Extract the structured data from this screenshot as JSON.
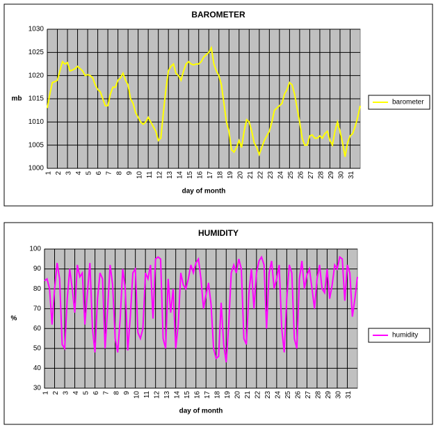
{
  "chart_data": [
    {
      "type": "line",
      "title": "BAROMETER",
      "x_label": "day of month",
      "y_label": "mb",
      "xlim": [
        1,
        32
      ],
      "xticks": [
        1,
        2,
        3,
        4,
        5,
        6,
        7,
        8,
        9,
        10,
        11,
        12,
        13,
        14,
        15,
        16,
        17,
        18,
        19,
        20,
        21,
        22,
        23,
        24,
        25,
        26,
        27,
        28,
        29,
        30,
        31
      ],
      "ylim": [
        1000,
        1030
      ],
      "yticks": [
        1000,
        1005,
        1010,
        1015,
        1020,
        1025,
        1030
      ],
      "grid": true,
      "legend": "right",
      "x": [
        1,
        1.25,
        1.5,
        1.75,
        2,
        2.25,
        2.5,
        2.75,
        3,
        3.25,
        3.5,
        3.75,
        4,
        4.25,
        4.5,
        4.75,
        5,
        5.25,
        5.5,
        5.75,
        6,
        6.25,
        6.5,
        6.75,
        7,
        7.25,
        7.5,
        7.75,
        8,
        8.25,
        8.5,
        8.75,
        9,
        9.25,
        9.5,
        9.75,
        10,
        10.25,
        10.5,
        10.75,
        11,
        11.25,
        11.5,
        11.75,
        12,
        12.25,
        12.5,
        12.75,
        13,
        13.25,
        13.5,
        13.75,
        14,
        14.25,
        14.5,
        14.75,
        15,
        15.25,
        15.5,
        15.75,
        16,
        16.25,
        16.5,
        16.75,
        17,
        17.25,
        17.5,
        17.75,
        18,
        18.25,
        18.5,
        18.75,
        19,
        19.25,
        19.5,
        19.75,
        20,
        20.25,
        20.5,
        20.75,
        21,
        21.25,
        21.5,
        21.75,
        22,
        22.25,
        22.5,
        22.75,
        23,
        23.25,
        23.5,
        23.75,
        24,
        24.25,
        24.5,
        24.75,
        25,
        25.25,
        25.5,
        25.75,
        26,
        26.25,
        26.5,
        26.75,
        27,
        27.25,
        27.5,
        27.75,
        28,
        28.25,
        28.5,
        28.75,
        29,
        29.25,
        29.5,
        29.75,
        30,
        30.25,
        30.5,
        30.75,
        31,
        31.25,
        31.5,
        31.75,
        32
      ],
      "series": [
        {
          "name": "barometer",
          "color": "#ffff00",
          "values": [
            1013,
            1016,
            1018.5,
            1018.7,
            1019,
            1021,
            1023,
            1022.5,
            1022.8,
            1021,
            1021.2,
            1021.5,
            1022,
            1021.5,
            1021,
            1020,
            1020.2,
            1020,
            1019.5,
            1018,
            1017,
            1016.5,
            1015,
            1013.5,
            1013.5,
            1016,
            1017.5,
            1017.5,
            1019,
            1019.5,
            1020.5,
            1019,
            1018,
            1015,
            1014,
            1012,
            1011,
            1010,
            1009.5,
            1010,
            1011,
            1010,
            1009,
            1008,
            1006,
            1006.5,
            1012,
            1017,
            1021,
            1022,
            1022.5,
            1020.5,
            1020,
            1019,
            1021,
            1022.5,
            1023,
            1022.5,
            1022.3,
            1022.5,
            1022.5,
            1023,
            1024,
            1024.5,
            1025,
            1026,
            1022.5,
            1021,
            1020,
            1018,
            1014,
            1010,
            1008,
            1004,
            1003.5,
            1004.5,
            1006,
            1004.5,
            1008,
            1010.5,
            1010,
            1008,
            1005.5,
            1004.5,
            1003,
            1004.5,
            1006,
            1007,
            1008,
            1010,
            1012.5,
            1013,
            1013.5,
            1014,
            1016,
            1017,
            1018.5,
            1018,
            1016,
            1013,
            1010,
            1006.5,
            1005,
            1005,
            1007,
            1007.2,
            1006.5,
            1006.5,
            1007,
            1006.5,
            1007.5,
            1008,
            1006,
            1005,
            1008,
            1010,
            1008,
            1005.5,
            1002.5,
            1005.5,
            1007,
            1007.5,
            1009,
            1011,
            1013.5
          ]
        }
      ]
    },
    {
      "type": "line",
      "title": "HUMIDITY",
      "x_label": "day of month",
      "y_label": "%",
      "xlim": [
        1,
        32
      ],
      "xticks": [
        1,
        2,
        3,
        4,
        5,
        6,
        7,
        8,
        9,
        10,
        11,
        12,
        13,
        14,
        15,
        16,
        17,
        18,
        19,
        20,
        21,
        22,
        23,
        24,
        25,
        26,
        27,
        28,
        29,
        30,
        31
      ],
      "ylim": [
        30,
        100
      ],
      "yticks": [
        30,
        40,
        50,
        60,
        70,
        80,
        90,
        100
      ],
      "grid": true,
      "legend": "right",
      "x": [
        1,
        1.25,
        1.5,
        1.75,
        2,
        2.25,
        2.5,
        2.75,
        3,
        3.25,
        3.5,
        3.75,
        4,
        4.25,
        4.5,
        4.75,
        5,
        5.25,
        5.5,
        5.75,
        6,
        6.25,
        6.5,
        6.75,
        7,
        7.25,
        7.5,
        7.75,
        8,
        8.25,
        8.5,
        8.75,
        9,
        9.25,
        9.5,
        9.75,
        10,
        10.25,
        10.5,
        10.75,
        11,
        11.25,
        11.5,
        11.75,
        12,
        12.25,
        12.5,
        12.75,
        13,
        13.25,
        13.5,
        13.75,
        14,
        14.25,
        14.5,
        14.75,
        15,
        15.25,
        15.5,
        15.75,
        16,
        16.25,
        16.5,
        16.75,
        17,
        17.25,
        17.5,
        17.75,
        18,
        18.25,
        18.5,
        18.75,
        19,
        19.25,
        19.5,
        19.75,
        20,
        20.25,
        20.5,
        20.75,
        21,
        21.25,
        21.5,
        21.75,
        22,
        22.25,
        22.5,
        22.75,
        23,
        23.25,
        23.5,
        23.75,
        24,
        24.25,
        24.5,
        24.75,
        25,
        25.25,
        25.5,
        25.75,
        26,
        26.25,
        26.5,
        26.75,
        27,
        27.25,
        27.5,
        27.75,
        28,
        28.25,
        28.5,
        28.75,
        29,
        29.25,
        29.5,
        29.75,
        30,
        30.25,
        30.5,
        30.75,
        31,
        31.25,
        31.5,
        31.75,
        32
      ],
      "series": [
        {
          "name": "humidity",
          "color": "#ff00ff",
          "values": [
            84,
            85,
            80,
            62,
            80,
            93,
            85,
            52,
            50,
            75,
            90,
            80,
            68,
            92,
            86,
            88,
            62,
            78,
            93,
            60,
            48,
            75,
            88,
            85,
            50,
            70,
            92,
            82,
            55,
            48,
            65,
            90,
            80,
            49,
            66,
            88,
            90,
            58,
            55,
            60,
            88,
            85,
            92,
            65,
            95,
            96,
            95,
            55,
            50,
            85,
            68,
            80,
            50,
            62,
            88,
            82,
            80,
            85,
            92,
            88,
            93,
            95,
            85,
            70,
            77,
            83,
            72,
            50,
            45,
            46,
            73,
            52,
            43,
            62,
            88,
            92,
            88,
            95,
            90,
            55,
            52,
            78,
            90,
            70,
            88,
            94,
            96,
            92,
            60,
            88,
            94,
            80,
            85,
            92,
            60,
            48,
            75,
            92,
            88,
            55,
            50,
            85,
            94,
            80,
            87,
            90,
            80,
            70,
            85,
            92,
            80,
            78,
            90,
            75,
            82,
            92,
            90,
            96,
            95,
            74,
            92,
            88,
            66,
            75,
            86
          ]
        }
      ]
    }
  ]
}
